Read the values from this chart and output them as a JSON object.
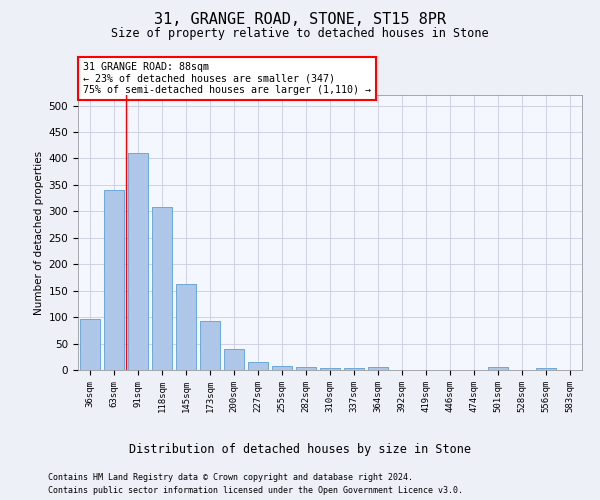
{
  "title_line1": "31, GRANGE ROAD, STONE, ST15 8PR",
  "title_line2": "Size of property relative to detached houses in Stone",
  "xlabel": "Distribution of detached houses by size in Stone",
  "ylabel": "Number of detached properties",
  "bar_color": "#aec6e8",
  "bar_edge_color": "#5a9fd4",
  "categories": [
    "36sqm",
    "63sqm",
    "91sqm",
    "118sqm",
    "145sqm",
    "173sqm",
    "200sqm",
    "227sqm",
    "255sqm",
    "282sqm",
    "310sqm",
    "337sqm",
    "364sqm",
    "392sqm",
    "419sqm",
    "446sqm",
    "474sqm",
    "501sqm",
    "528sqm",
    "556sqm",
    "583sqm"
  ],
  "values": [
    97,
    341,
    411,
    309,
    163,
    93,
    40,
    16,
    8,
    5,
    3,
    3,
    6,
    0,
    0,
    0,
    0,
    5,
    0,
    4,
    0
  ],
  "property_label": "31 GRANGE ROAD: 88sqm",
  "annotation_line1": "← 23% of detached houses are smaller (347)",
  "annotation_line2": "75% of semi-detached houses are larger (1,110) →",
  "red_line_x": 1.5,
  "ylim": [
    0,
    520
  ],
  "yticks": [
    0,
    50,
    100,
    150,
    200,
    250,
    300,
    350,
    400,
    450,
    500
  ],
  "footer_line1": "Contains HM Land Registry data © Crown copyright and database right 2024.",
  "footer_line2": "Contains public sector information licensed under the Open Government Licence v3.0.",
  "background_color": "#eef0f8",
  "plot_bg_color": "#f5f7ff",
  "grid_color": "#c8cde0"
}
